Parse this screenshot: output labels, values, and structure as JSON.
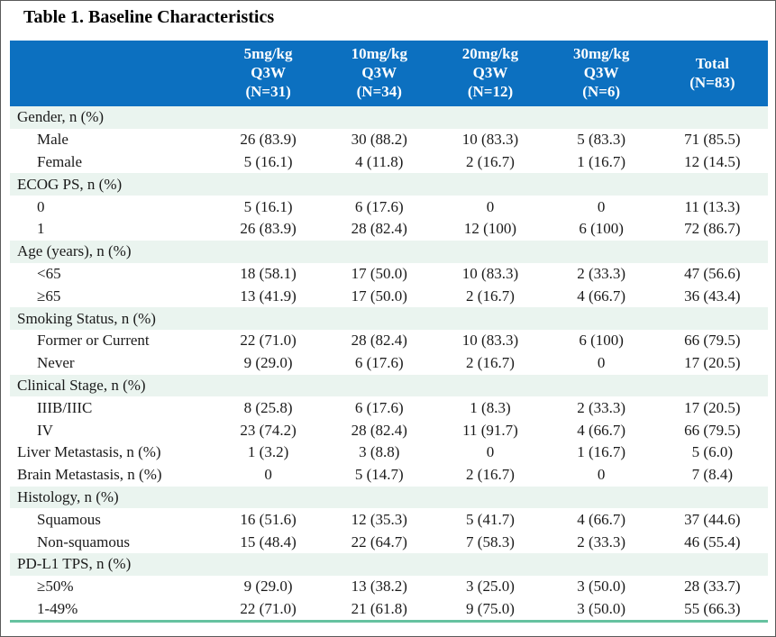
{
  "title": "Table 1. Baseline Characteristics",
  "colors": {
    "header_bg": "#0c70c0",
    "section_bg": "#eaf4ef",
    "bottom_rule": "#66c2a0"
  },
  "table": {
    "columns": [
      {
        "lines": [
          ""
        ]
      },
      {
        "lines": [
          "5mg/kg",
          "Q3W",
          "(N=31)"
        ]
      },
      {
        "lines": [
          "10mg/kg",
          "Q3W",
          "(N=34)"
        ]
      },
      {
        "lines": [
          "20mg/kg",
          "Q3W",
          "(N=12)"
        ]
      },
      {
        "lines": [
          "30mg/kg",
          "Q3W",
          "(N=6)"
        ]
      },
      {
        "lines": [
          "Total",
          "(N=83)"
        ]
      }
    ],
    "rows": [
      {
        "type": "section",
        "label": "Gender, n (%)",
        "values": []
      },
      {
        "type": "data",
        "indent": true,
        "label": "Male",
        "values": [
          "26 (83.9)",
          "30 (88.2)",
          "10 (83.3)",
          "5 (83.3)",
          "71 (85.5)"
        ]
      },
      {
        "type": "data",
        "indent": true,
        "label": "Female",
        "values": [
          "5 (16.1)",
          "4 (11.8)",
          "2 (16.7)",
          "1 (16.7)",
          "12 (14.5)"
        ]
      },
      {
        "type": "section",
        "label": "ECOG PS, n (%)",
        "values": []
      },
      {
        "type": "data",
        "indent": true,
        "label": "0",
        "values": [
          "5 (16.1)",
          "6 (17.6)",
          "0",
          "0",
          "11 (13.3)"
        ]
      },
      {
        "type": "data",
        "indent": true,
        "label": "1",
        "values": [
          "26 (83.9)",
          "28 (82.4)",
          "12 (100)",
          "6 (100)",
          "72 (86.7)"
        ]
      },
      {
        "type": "section",
        "label": "Age (years), n (%)",
        "values": []
      },
      {
        "type": "data",
        "indent": true,
        "label": "<65",
        "values": [
          "18 (58.1)",
          "17 (50.0)",
          "10 (83.3)",
          "2 (33.3)",
          "47 (56.6)"
        ]
      },
      {
        "type": "data",
        "indent": true,
        "label": "≥65",
        "values": [
          "13 (41.9)",
          "17 (50.0)",
          "2 (16.7)",
          "4 (66.7)",
          "36 (43.4)"
        ]
      },
      {
        "type": "section",
        "label": "Smoking Status, n (%)",
        "values": []
      },
      {
        "type": "data",
        "indent": true,
        "label": "Former or Current",
        "values": [
          "22 (71.0)",
          "28 (82.4)",
          "10 (83.3)",
          "6 (100)",
          "66 (79.5)"
        ]
      },
      {
        "type": "data",
        "indent": true,
        "label": "Never",
        "values": [
          "9 (29.0)",
          "6 (17.6)",
          "2 (16.7)",
          "0",
          "17 (20.5)"
        ]
      },
      {
        "type": "section",
        "label": "Clinical Stage, n (%)",
        "values": []
      },
      {
        "type": "data",
        "indent": true,
        "label": "IIIB/IIIC",
        "values": [
          "8 (25.8)",
          "6 (17.6)",
          "1 (8.3)",
          "2 (33.3)",
          "17 (20.5)"
        ]
      },
      {
        "type": "data",
        "indent": true,
        "label": "IV",
        "values": [
          "23 (74.2)",
          "28 (82.4)",
          "11 (91.7)",
          "4 (66.7)",
          "66 (79.5)"
        ]
      },
      {
        "type": "data",
        "indent": false,
        "label": "Liver Metastasis, n (%)",
        "values": [
          "1 (3.2)",
          "3 (8.8)",
          "0",
          "1 (16.7)",
          "5 (6.0)"
        ]
      },
      {
        "type": "data",
        "indent": false,
        "label": "Brain Metastasis, n (%)",
        "values": [
          "0",
          "5 (14.7)",
          "2 (16.7)",
          "0",
          "7 (8.4)"
        ]
      },
      {
        "type": "section",
        "label": "Histology, n (%)",
        "values": []
      },
      {
        "type": "data",
        "indent": true,
        "label": "Squamous",
        "values": [
          "16 (51.6)",
          "12 (35.3)",
          "5 (41.7)",
          "4 (66.7)",
          "37 (44.6)"
        ]
      },
      {
        "type": "data",
        "indent": true,
        "label": "Non-squamous",
        "values": [
          "15 (48.4)",
          "22 (64.7)",
          "7 (58.3)",
          "2 (33.3)",
          "46 (55.4)"
        ]
      },
      {
        "type": "section",
        "label": "PD-L1 TPS, n (%)",
        "values": []
      },
      {
        "type": "data",
        "indent": true,
        "label": "≥50%",
        "values": [
          "9 (29.0)",
          "13 (38.2)",
          "3 (25.0)",
          "3 (50.0)",
          "28 (33.7)"
        ]
      },
      {
        "type": "data",
        "indent": true,
        "label": "1-49%",
        "values": [
          "22 (71.0)",
          "21 (61.8)",
          "9 (75.0)",
          "3 (50.0)",
          "55 (66.3)"
        ]
      }
    ]
  }
}
